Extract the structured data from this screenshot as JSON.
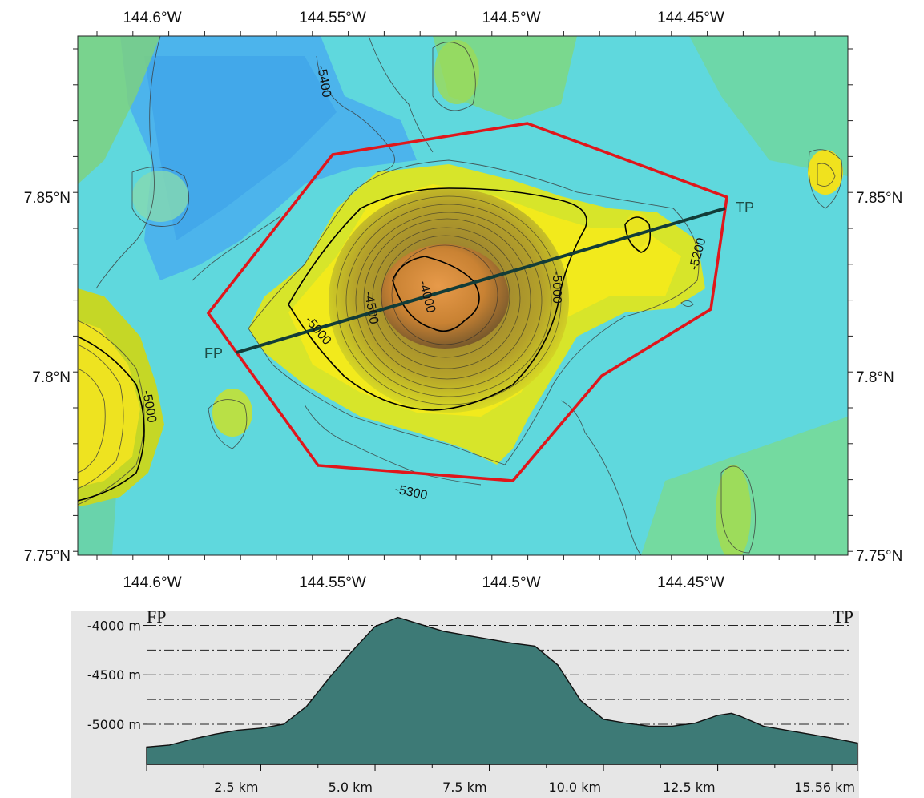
{
  "map": {
    "lon_ticks": [
      "144.6°W",
      "144.55°W",
      "144.5°W",
      "144.45°W"
    ],
    "lat_ticks": [
      "7.85°N",
      "7.8°N",
      "7.75°N"
    ],
    "contour_labels": [
      "-5400",
      "-5200",
      "-5000",
      "-5000",
      "-5000",
      "-4500",
      "-4000",
      "-5300"
    ],
    "transect_start_label": "FP",
    "transect_end_label": "TP",
    "colors": {
      "boundary": "#e0161b",
      "transect": "#123c38",
      "deep": "#52b6f0",
      "shallow": "#f6ee1a",
      "summit": "#d98a3b"
    }
  },
  "profile": {
    "start_label": "FP",
    "end_label": "TP",
    "depth_labels": [
      "-4000 m",
      "-4500 m",
      "-5000 m"
    ],
    "distance_labels": [
      "2.5 km",
      "5.0 km",
      "7.5 km",
      "10.0 km",
      "12.5 km",
      "15.56 km"
    ],
    "fill_color": "#3d7a76",
    "chart_data": {
      "type": "area",
      "title": "",
      "xlabel": "",
      "ylabel": "",
      "xlim": [
        0,
        15.56
      ],
      "ylim": [
        -5300,
        -3850
      ],
      "x": [
        0,
        0.5,
        1.0,
        1.5,
        2.0,
        2.5,
        3.0,
        3.5,
        4.0,
        4.5,
        5.0,
        5.5,
        6.0,
        6.5,
        7.0,
        7.5,
        8.0,
        8.5,
        9.0,
        9.5,
        10.0,
        10.5,
        11.0,
        11.5,
        12.0,
        12.5,
        12.8,
        13.0,
        13.5,
        14.0,
        14.5,
        15.0,
        15.56
      ],
      "series": [
        {
          "values": [
            -5230,
            -5210,
            -5150,
            -5100,
            -5060,
            -5040,
            -5000,
            -4820,
            -4530,
            -4260,
            -4010,
            -3920,
            -3990,
            -4060,
            -4100,
            -4140,
            -4180,
            -4210,
            -4400,
            -4760,
            -4950,
            -4990,
            -5020,
            -5020,
            -4990,
            -4910,
            -4890,
            -4920,
            -5020,
            -5060,
            -5100,
            -5140,
            -5190
          ]
        }
      ]
    }
  }
}
